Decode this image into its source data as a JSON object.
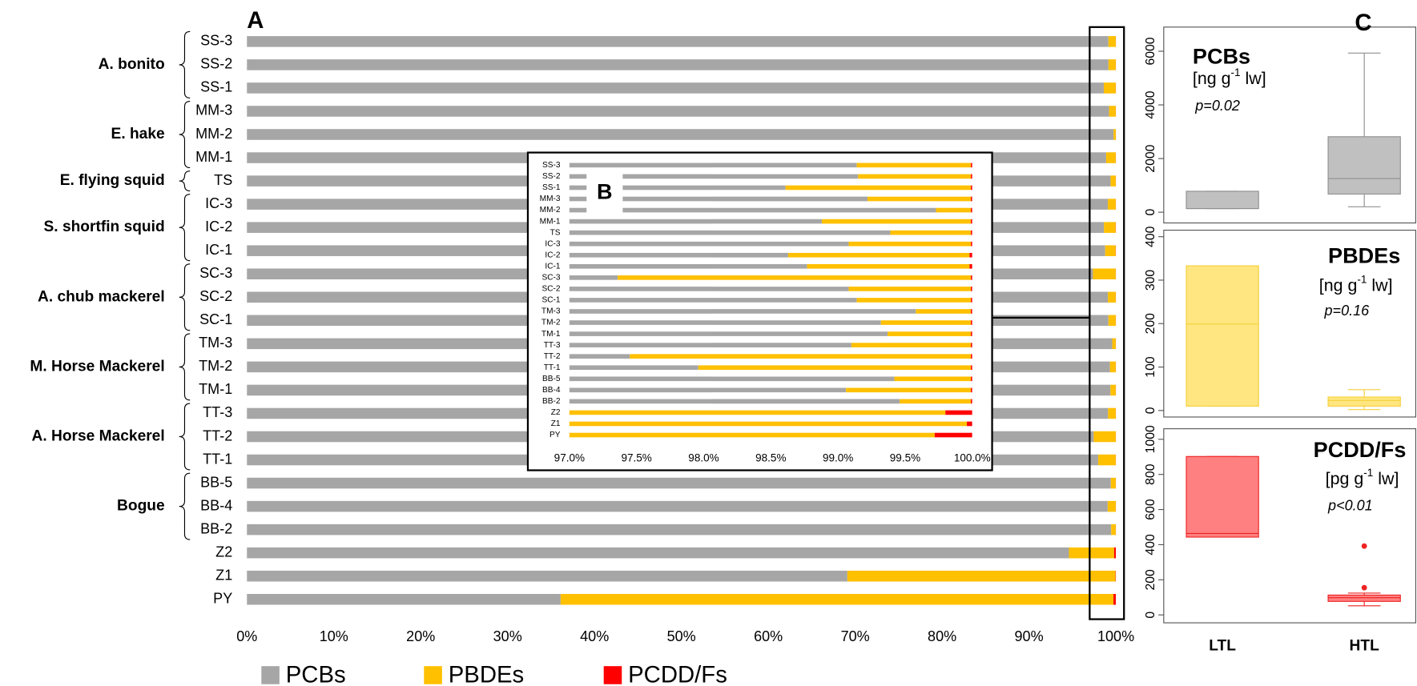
{
  "chart_data": [
    {
      "type": "bar",
      "orientation": "horizontal",
      "stacked": true,
      "title": "A",
      "categories": [
        "SS-3",
        "SS-2",
        "SS-1",
        "MM-3",
        "MM-2",
        "MM-1",
        "TS",
        "IC-3",
        "IC-2",
        "IC-1",
        "SC-3",
        "SC-2",
        "SC-1",
        "TM-3",
        "TM-2",
        "TM-1",
        "TT-3",
        "TT-2",
        "TT-1",
        "BB-5",
        "BB-4",
        "BB-2",
        "Z2",
        "Z1",
        "PY"
      ],
      "groups": [
        "A. bonito",
        "E. hake",
        "E. flying squid",
        "S. shortfin squid",
        "A. chub mackerel",
        "M. Horse Mackerel",
        "A. Horse Mackerel",
        "Bogue"
      ],
      "series": [
        {
          "name": "PCBs",
          "color": "#a6a6a6",
          "values": [
            99.14,
            99.15,
            98.61,
            99.22,
            99.73,
            98.88,
            99.39,
            99.08,
            98.63,
            98.77,
            97.36,
            99.08,
            99.14,
            99.58,
            99.32,
            99.37,
            99.1,
            97.45,
            97.96,
            99.42,
            99.06,
            99.46,
            94.6,
            69.1,
            36.1
          ]
        },
        {
          "name": "PBDEs",
          "color": "#ffc000",
          "values": [
            0.85,
            0.84,
            1.38,
            0.77,
            0.26,
            1.11,
            0.6,
            0.91,
            1.35,
            1.21,
            2.63,
            0.91,
            0.85,
            0.41,
            0.67,
            0.62,
            0.89,
            2.54,
            2.03,
            0.57,
            0.93,
            0.53,
            5.2,
            30.86,
            63.62
          ]
        },
        {
          "name": "PCDD/Fs",
          "color": "#ff0000",
          "values": [
            0.01,
            0.01,
            0.01,
            0.01,
            0.01,
            0.01,
            0.01,
            0.01,
            0.02,
            0.02,
            0.01,
            0.01,
            0.01,
            0.01,
            0.01,
            0.01,
            0.01,
            0.01,
            0.01,
            0.01,
            0.01,
            0.01,
            0.2,
            0.04,
            0.28
          ]
        }
      ],
      "xlim": [
        0,
        100
      ],
      "xticks": [
        {
          "value": 0,
          "label": "0%"
        },
        {
          "value": 10,
          "label": "10%"
        },
        {
          "value": 20,
          "label": "20%"
        },
        {
          "value": 30,
          "label": "30%"
        },
        {
          "value": 40,
          "label": "40%"
        },
        {
          "value": 50,
          "label": "50%"
        },
        {
          "value": 60,
          "label": "60%"
        },
        {
          "value": 70,
          "label": "70%"
        },
        {
          "value": 80,
          "label": "80%"
        },
        {
          "value": 90,
          "label": "90%"
        },
        {
          "value": 100,
          "label": "100%"
        }
      ],
      "legend": "bottom"
    },
    {
      "type": "inset",
      "title": "B",
      "xlim": [
        97,
        100
      ],
      "xticks": [
        {
          "value": 97,
          "label": "97.0%"
        },
        {
          "value": 97.5,
          "label": "97.5%"
        },
        {
          "value": 98,
          "label": "98.0%"
        },
        {
          "value": 98.5,
          "label": "98.5%"
        },
        {
          "value": 99,
          "label": "99.0%"
        },
        {
          "value": 99.5,
          "label": "99.5%"
        },
        {
          "value": 100,
          "label": "100.0%"
        }
      ]
    },
    {
      "type": "box",
      "panel_label": "C",
      "title": "PCBs",
      "unit": [
        "[ng g",
        "-1",
        " lw]"
      ],
      "annotation": "p=0.02",
      "fill": "#c0c0c0",
      "stroke": "#8f8f8f",
      "boxes": [
        {
          "min": 136,
          "q1": 136,
          "median": 136,
          "q3": 780,
          "max": 780,
          "outliers": []
        },
        {
          "min": 203,
          "q1": 678,
          "median": 1254,
          "q3": 2814,
          "max": 5932,
          "outliers": []
        }
      ],
      "ylim": [
        -400,
        6900
      ],
      "yticks": [
        0,
        2000,
        4000,
        6000
      ]
    },
    {
      "type": "box",
      "title": "PBDEs",
      "unit": [
        "[ng g",
        "-1",
        " lw]"
      ],
      "annotation": "p=0.16",
      "fill": "#ffe680",
      "stroke": "#f5cf3c",
      "boxes": [
        {
          "min": 10,
          "q1": 10,
          "median": 199,
          "q3": 333,
          "max": 333,
          "outliers": []
        },
        {
          "min": 2,
          "q1": 10,
          "median": 23,
          "q3": 31,
          "max": 48,
          "outliers": []
        }
      ],
      "ylim": [
        -15,
        415
      ],
      "yticks": [
        0,
        100,
        200,
        300,
        400
      ]
    },
    {
      "type": "box",
      "title": "PCDD/Fs",
      "unit": [
        "[pg g",
        "-1",
        " lw]"
      ],
      "annotation": "p<0.01",
      "fill": "#ff8080",
      "stroke": "#ee2222",
      "categories": [
        "LTL",
        "HTL"
      ],
      "boxes": [
        {
          "min": 443,
          "q1": 443,
          "median": 464,
          "q3": 902,
          "max": 902,
          "outliers": []
        },
        {
          "min": 52,
          "q1": 77,
          "median": 98,
          "q3": 113,
          "max": 124,
          "outliers": [
            392,
            155
          ]
        }
      ],
      "ylim": [
        -45,
        1060
      ],
      "yticks": [
        0,
        200,
        400,
        600,
        800,
        1000
      ]
    }
  ]
}
